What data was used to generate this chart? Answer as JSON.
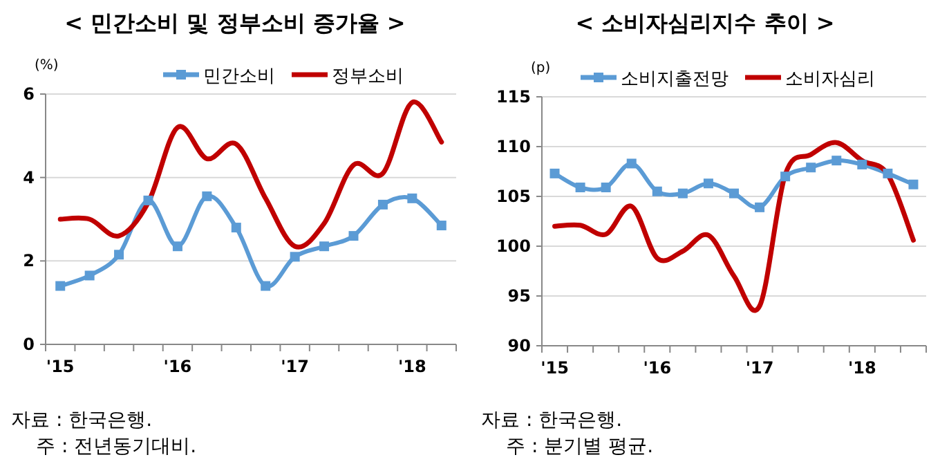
{
  "chart_data": [
    {
      "type": "line",
      "title": "< 민간소비 및 정부소비 증가율 >",
      "ylabel": "(%)",
      "categories": [
        "'15",
        null,
        null,
        null,
        "'16",
        null,
        null,
        null,
        "'17",
        null,
        null,
        null,
        "'18",
        null
      ],
      "series": [
        {
          "name": "민간소비",
          "color": "#5b9bd5",
          "marker": "square",
          "values": [
            1.4,
            1.65,
            2.15,
            3.45,
            2.35,
            3.55,
            2.8,
            1.4,
            2.1,
            2.35,
            2.6,
            3.35,
            3.5,
            2.85
          ]
        },
        {
          "name": "정부소비",
          "color": "#c00000",
          "marker": "none",
          "values": [
            3.0,
            3.0,
            2.6,
            3.4,
            5.2,
            4.45,
            4.8,
            3.5,
            2.35,
            2.9,
            4.3,
            4.1,
            5.8,
            4.85
          ]
        }
      ],
      "ylim": [
        0,
        6
      ],
      "yticks": [
        0,
        2,
        4,
        6
      ],
      "grid": "y",
      "legend": "top",
      "annotations": [
        "자료 : 한국은행.",
        "주 : 전년동기대비."
      ]
    },
    {
      "type": "line",
      "title": "< 소비자심리지수 추이 >",
      "ylabel": "(p)",
      "categories": [
        "'15",
        null,
        null,
        null,
        "'16",
        null,
        null,
        null,
        "'17",
        null,
        null,
        null,
        "'18",
        null,
        null
      ],
      "series": [
        {
          "name": "소비지출전망",
          "color": "#5b9bd5",
          "marker": "square",
          "values": [
            107.3,
            105.9,
            105.9,
            108.3,
            105.5,
            105.3,
            106.3,
            105.3,
            103.9,
            107.0,
            107.9,
            108.6,
            108.2,
            107.3,
            106.2
          ]
        },
        {
          "name": "소비자심리",
          "color": "#c00000",
          "marker": "none",
          "values": [
            102,
            102.1,
            101.2,
            104,
            98.8,
            99.5,
            101.1,
            97,
            94,
            107.2,
            109.2,
            110.4,
            108.6,
            107.2,
            100.6
          ]
        }
      ],
      "ylim": [
        90,
        115
      ],
      "yticks": [
        90,
        95,
        100,
        105,
        110,
        115
      ],
      "grid": "y",
      "legend": "top",
      "annotations": [
        "자료 : 한국은행.",
        "주 : 분기별 평균."
      ]
    }
  ]
}
